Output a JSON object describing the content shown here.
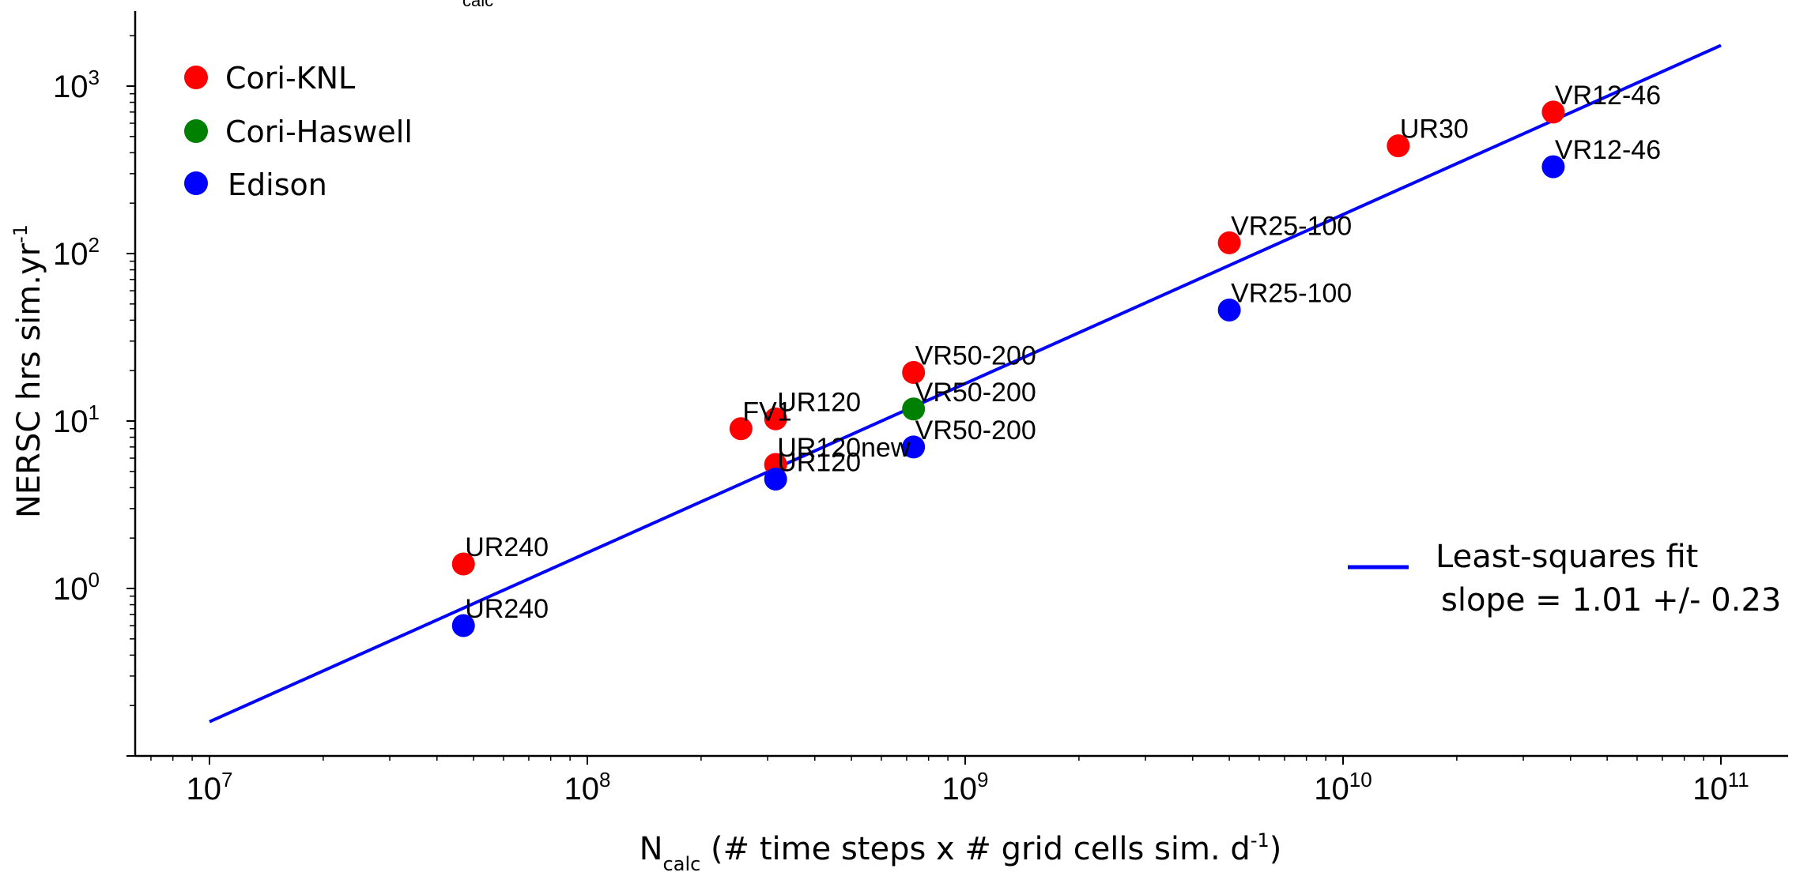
{
  "chart_data": {
    "type": "scatter",
    "x_scale": "log",
    "y_scale": "log",
    "xlim": [
      6500000,
      200000000000
    ],
    "ylim": [
      0.1,
      2500
    ],
    "xlabel": {
      "main": "N",
      "sub": "calc",
      "rest": " (# time steps x # grid cells sim. d",
      "sup": "-1",
      "close": ")"
    },
    "ylabel": {
      "main": "NERSC hrs sim.yr",
      "sup": "-1"
    },
    "x_ticks": [
      {
        "value": 10000000,
        "base": "10",
        "exp": "7"
      },
      {
        "value": 100000000,
        "base": "10",
        "exp": "8"
      },
      {
        "value": 1000000000,
        "base": "10",
        "exp": "9"
      },
      {
        "value": 10000000000,
        "base": "10",
        "exp": "10"
      },
      {
        "value": 100000000000,
        "base": "10",
        "exp": "11"
      }
    ],
    "y_ticks": [
      {
        "value": 1,
        "base": "10",
        "exp": "0"
      },
      {
        "value": 10,
        "base": "10",
        "exp": "1"
      },
      {
        "value": 100,
        "base": "10",
        "exp": "2"
      },
      {
        "value": 1000,
        "base": "10",
        "exp": "3"
      }
    ],
    "series": [
      {
        "name": "Cori-KNL",
        "color": "#ff0000",
        "points": [
          {
            "x": 47000000,
            "y": 1.4,
            "label": "UR240"
          },
          {
            "x": 255000000,
            "y": 9.0,
            "label": "FV1"
          },
          {
            "x": 315000000,
            "y": 10.3,
            "label": "UR120"
          },
          {
            "x": 315000000,
            "y": 5.5,
            "label": "UR120new"
          },
          {
            "x": 730000000,
            "y": 19.5,
            "label": "VR50-200"
          },
          {
            "x": 5000000000,
            "y": 116,
            "label": "VR25-100"
          },
          {
            "x": 14000000000,
            "y": 440,
            "label": "UR30"
          },
          {
            "x": 36000000000,
            "y": 700,
            "label": "VR12-46"
          }
        ]
      },
      {
        "name": "Cori-Haswell",
        "color": "#008000",
        "points": [
          {
            "x": 730000000,
            "y": 11.8,
            "label": "VR50-200"
          }
        ]
      },
      {
        "name": "Edison",
        "color": "#0000ff",
        "points": [
          {
            "x": 47000000,
            "y": 0.6,
            "label": "UR240"
          },
          {
            "x": 315000000,
            "y": 4.5,
            "label": "UR120"
          },
          {
            "x": 730000000,
            "y": 7.0,
            "label": "VR50-200"
          },
          {
            "x": 5000000000,
            "y": 46,
            "label": "VR25-100"
          },
          {
            "x": 36000000000,
            "y": 330,
            "label": "VR12-46"
          }
        ]
      }
    ],
    "fit": {
      "name": "Least-squares fit",
      "detail": "slope = 1.01 +/- 0.23",
      "color": "#0000ff",
      "x_range": [
        10000000,
        100000000000
      ],
      "y_range": [
        0.16,
        1750
      ]
    },
    "legend_placement": "top-left",
    "fit_legend_placement": "right",
    "grid": false,
    "top_label": "calc"
  }
}
